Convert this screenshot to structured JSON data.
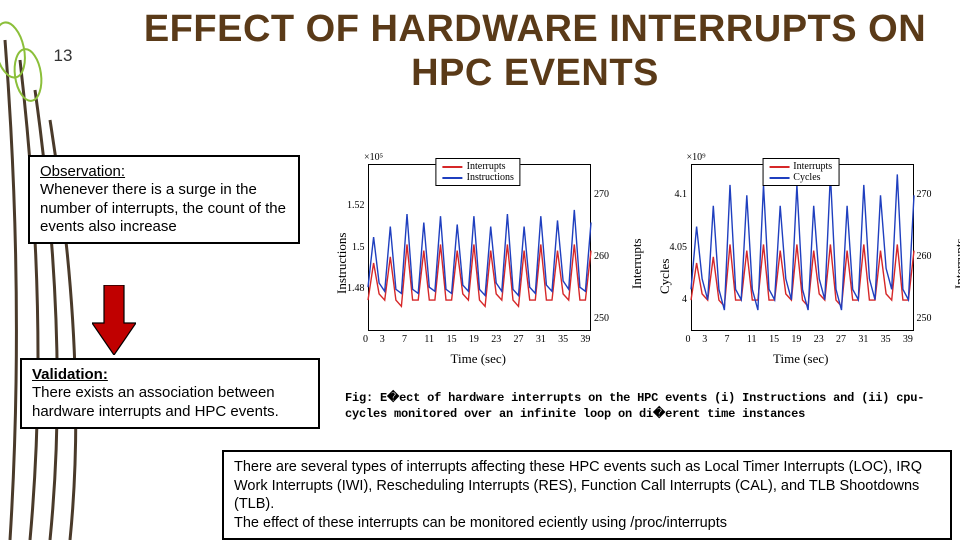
{
  "slide_number": "13",
  "title": {
    "text": "EFFECT OF HARDWARE INTERRUPTS ON HPC EVENTS",
    "fontsize": 38,
    "color": "#5a3a18"
  },
  "observation": {
    "heading": "Observation:",
    "body": "Whenever there is a surge in the number of interrupts, the count of the events also increase"
  },
  "validation": {
    "heading": "Validation:",
    "body": "There exists an association between hardware interrupts and HPC events."
  },
  "notes": {
    "para1": "There are several types of interrupts affecting these HPC events such as Local Timer Interrupts (LOC), IRQ Work Interrupts (IWI), Rescheduling Interrupts (RES), Function Call Interrupts (CAL), and TLB Shootdowns (TLB).",
    "para2": "The effect of these interrupts can be monitored eciently using /proc/interrupts"
  },
  "caption": "Fig: E�ect of hardware interrupts on the HPC events (i) Instructions and (ii) cpu-cycles monitored over an infinite loop on di�erent time instances",
  "arrow": {
    "fill": "#c00000",
    "stroke": "#000000"
  },
  "deco_stems": {
    "stroke": "#4a3a2a",
    "stroke_width": 3,
    "accent": "#8bbf3a"
  },
  "charts": {
    "shared": {
      "x_ticks": [
        "0",
        "3",
        "7",
        "11",
        "15",
        "19",
        "23",
        "27",
        "31",
        "35",
        "39"
      ],
      "xlabel": "Time (sec)",
      "xlim": [
        0,
        40
      ],
      "background": "#ffffff",
      "frame_color": "#000000",
      "tick_fontsize": 10,
      "label_fontsize": 13,
      "font_family": "serif",
      "line_width": 1.4
    },
    "left": {
      "exponent": "×10⁵",
      "left_ylabel": "Instructions",
      "left_ylim": [
        1.46,
        1.54
      ],
      "left_ticks": [
        "1.48",
        "1.5",
        "1.52"
      ],
      "left_exp_pos": "top-left",
      "right_ylabel": "Interrupts",
      "right_ylim": [
        248,
        275
      ],
      "right_ticks": [
        "250",
        "260",
        "270"
      ],
      "legend": [
        {
          "label": "Interrupts",
          "color": "#d62728"
        },
        {
          "label": "Instructions",
          "color": "#1f3fbf"
        }
      ],
      "series": {
        "interrupts": {
          "color": "#d62728",
          "y": [
            253,
            259,
            254,
            253,
            260,
            253,
            252,
            262,
            253,
            253,
            261,
            253,
            253,
            262,
            253,
            253,
            261,
            254,
            253,
            262,
            253,
            252,
            261,
            254,
            253,
            262,
            253,
            252,
            261,
            253,
            253,
            262,
            253,
            253,
            261,
            254,
            253,
            262,
            253,
            253,
            261
          ]
        },
        "instructions": {
          "color": "#1f3fbf",
          "y": [
            1.481,
            1.505,
            1.483,
            1.479,
            1.51,
            1.48,
            1.478,
            1.516,
            1.48,
            1.478,
            1.512,
            1.481,
            1.479,
            1.515,
            1.48,
            1.478,
            1.511,
            1.482,
            1.479,
            1.515,
            1.48,
            1.477,
            1.51,
            1.483,
            1.479,
            1.516,
            1.48,
            1.477,
            1.51,
            1.481,
            1.478,
            1.515,
            1.482,
            1.479,
            1.513,
            1.484,
            1.48,
            1.518,
            1.481,
            1.479,
            1.512
          ]
        }
      }
    },
    "right": {
      "exponent": "×10⁹",
      "left_ylabel": "Cycles",
      "left_ylim": [
        3.97,
        4.13
      ],
      "left_ticks": [
        "4",
        "4.05",
        "4.1"
      ],
      "right_ylabel": "Interrupts",
      "right_ylim": [
        248,
        275
      ],
      "right_ticks": [
        "250",
        "260",
        "270"
      ],
      "legend": [
        {
          "label": "Interrupts",
          "color": "#d62728"
        },
        {
          "label": "Cycles",
          "color": "#1f3fbf"
        }
      ],
      "series": {
        "interrupts": {
          "color": "#d62728",
          "y": [
            253,
            259,
            254,
            253,
            260,
            253,
            252,
            262,
            253,
            253,
            261,
            253,
            253,
            262,
            253,
            253,
            261,
            254,
            253,
            262,
            253,
            252,
            261,
            254,
            253,
            262,
            253,
            252,
            261,
            253,
            253,
            262,
            253,
            253,
            261,
            254,
            253,
            262,
            253,
            253,
            261
          ]
        },
        "cycles": {
          "color": "#1f3fbf",
          "y": [
            4.01,
            4.07,
            4.02,
            4.0,
            4.09,
            4.01,
            3.99,
            4.11,
            4.01,
            4.0,
            4.1,
            4.01,
            3.99,
            4.11,
            4.01,
            4.0,
            4.09,
            4.02,
            4.0,
            4.11,
            4.01,
            3.99,
            4.09,
            4.02,
            4.0,
            4.12,
            4.01,
            3.99,
            4.09,
            4.01,
            4.0,
            4.11,
            4.02,
            4.0,
            4.1,
            4.03,
            4.01,
            4.12,
            4.01,
            4.0,
            4.1
          ]
        }
      }
    }
  }
}
